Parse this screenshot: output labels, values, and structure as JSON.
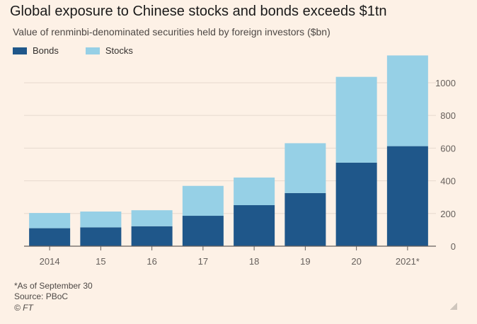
{
  "header": {
    "title": "Global exposure to Chinese stocks and bonds exceeds $1tn",
    "subtitle": "Value of renminbi-denominated securities held by foreign investors ($bn)"
  },
  "legend": {
    "bonds_label": "Bonds",
    "stocks_label": "Stocks"
  },
  "colors": {
    "bonds": "#1f578a",
    "stocks": "#96d0e6",
    "grid": "#e6d9ce",
    "axis": "#66605c",
    "background": "#fdf1e6"
  },
  "chart_data": {
    "type": "bar",
    "stacked": true,
    "categories": [
      "2014",
      "15",
      "16",
      "17",
      "18",
      "19",
      "20",
      "2021*"
    ],
    "series": [
      {
        "name": "Bonds",
        "values": [
          110,
          115,
          122,
          186,
          251,
          325,
          511,
          612
        ]
      },
      {
        "name": "Stocks",
        "values": [
          93,
          97,
          98,
          183,
          169,
          305,
          525,
          555
        ]
      }
    ],
    "ylim": [
      0,
      1160
    ],
    "yticks": [
      0,
      200,
      400,
      600,
      800,
      1000
    ],
    "ytick_labels": [
      "0",
      "200",
      "400",
      "600",
      "800",
      "1000"
    ],
    "y_axis_side": "right",
    "grid": true,
    "legend_position": "top-left"
  },
  "footer": {
    "note": "*As of September 30",
    "source": "Source: PBoC",
    "credit": "© FT"
  }
}
